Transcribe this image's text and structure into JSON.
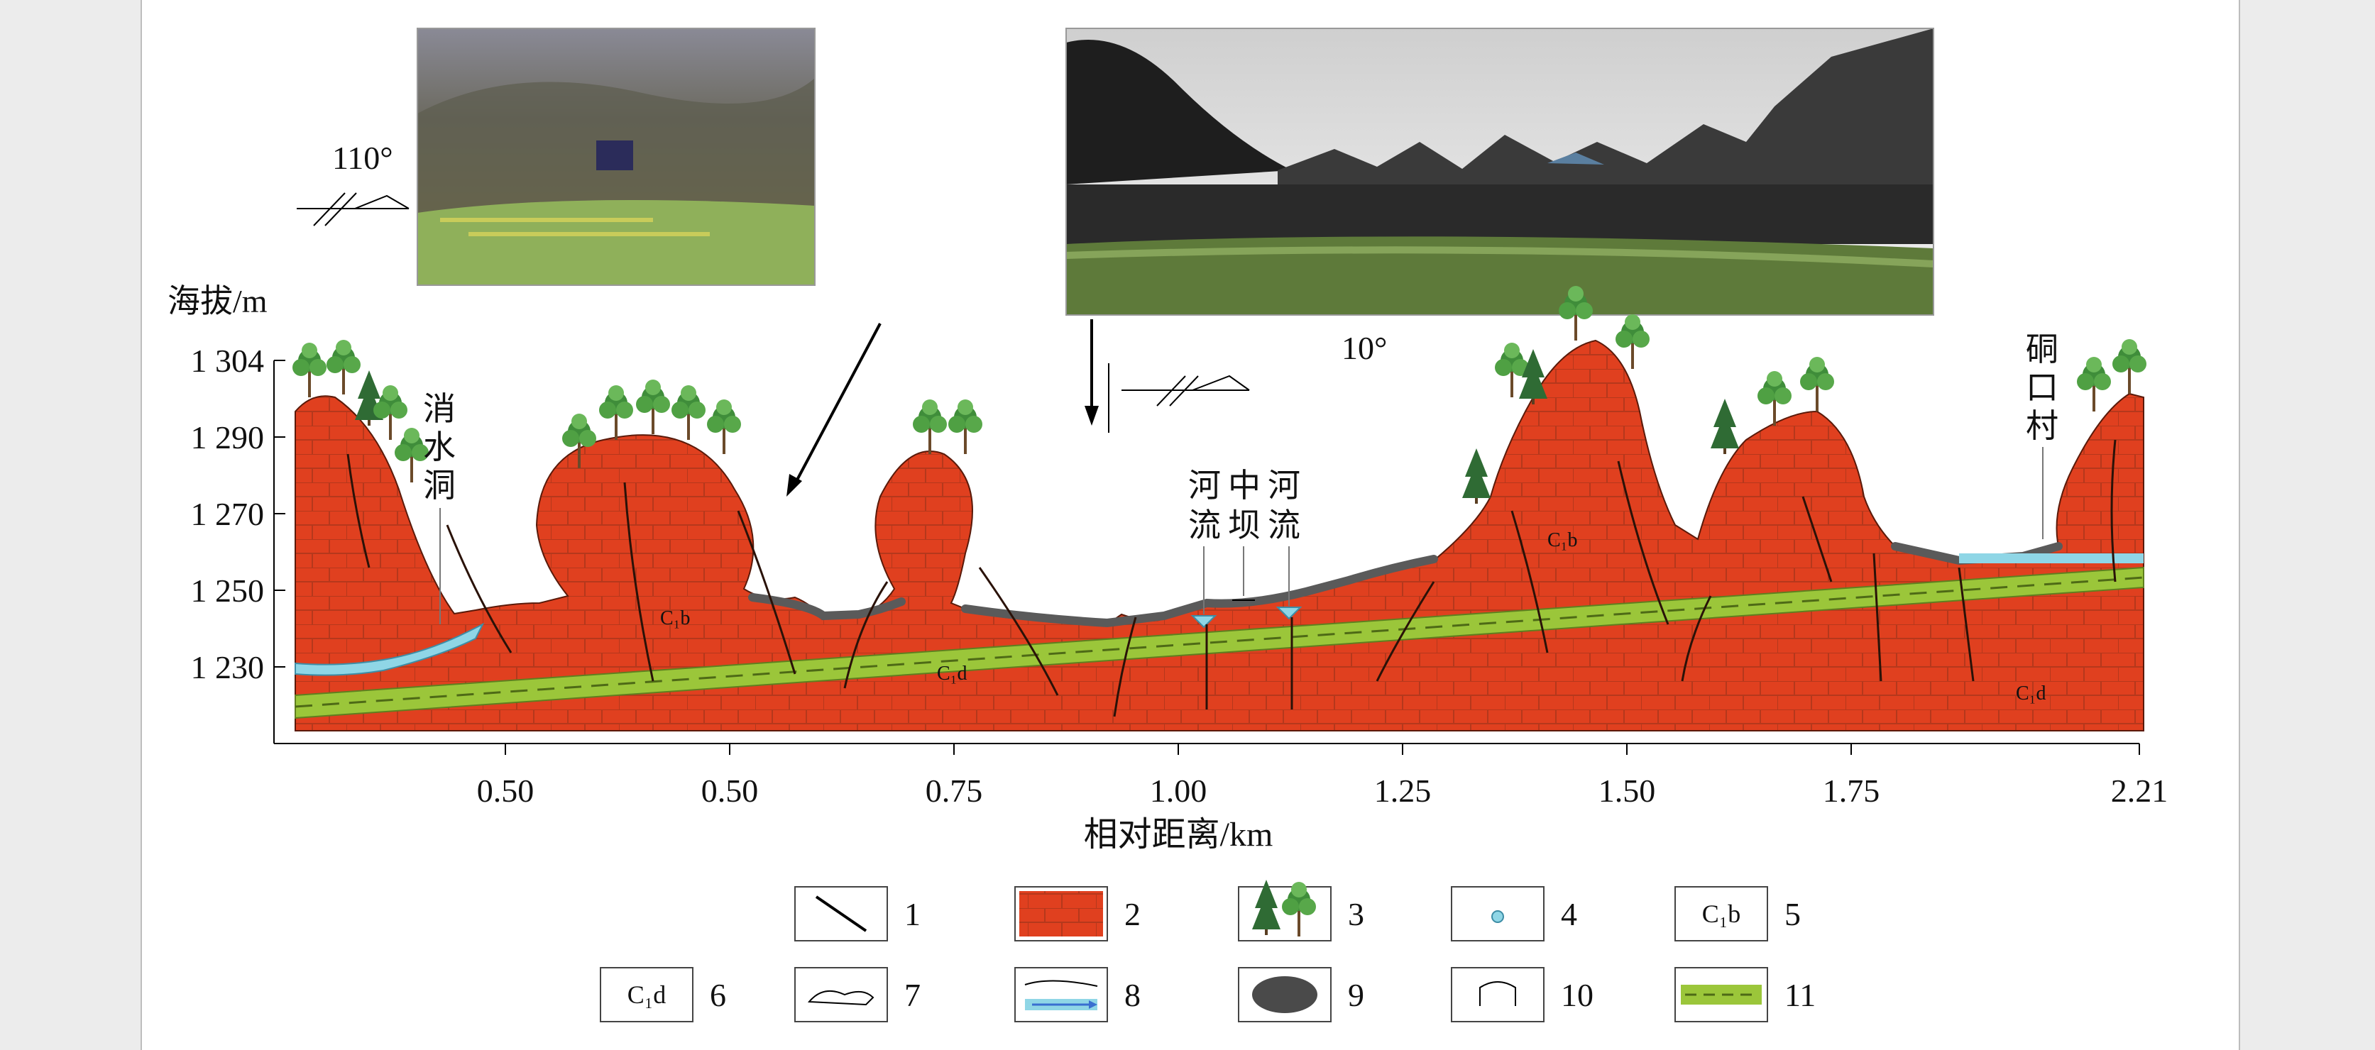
{
  "axis": {
    "y_label": "海拔/m",
    "x_label": "相对距离/km",
    "y_ticks": [
      "1 304",
      "1 290",
      "1 270",
      "1 250",
      "1 230"
    ],
    "x_ticks": [
      "0.50",
      "0.50",
      "0.75",
      "1.00",
      "1.25",
      "1.50",
      "1.75",
      "2.21"
    ]
  },
  "annotations": {
    "dip_left": "110°",
    "dip_right": "10°",
    "cave": "消水洞",
    "river_left": "河流",
    "zhongba": "中坝",
    "river_right": "河流",
    "village": "硐口村",
    "strata_c1b_1": "C₁b",
    "strata_c1d_1": "C₁d",
    "strata_c1b_2": "C₁b",
    "strata_c1d_2": "C₁d"
  },
  "legend": [
    {
      "num": "1",
      "symbol": "fault-line"
    },
    {
      "num": "2",
      "symbol": "limestone"
    },
    {
      "num": "3",
      "symbol": "vegetation"
    },
    {
      "num": "4",
      "symbol": "spring"
    },
    {
      "num": "5",
      "symbol": "C₁b"
    },
    {
      "num": "6",
      "symbol": "C₁d"
    },
    {
      "num": "7",
      "symbol": "boundary"
    },
    {
      "num": "8",
      "symbol": "river-flow"
    },
    {
      "num": "9",
      "symbol": "soil"
    },
    {
      "num": "10",
      "symbol": "cave"
    },
    {
      "num": "11",
      "symbol": "marker-bed"
    }
  ],
  "legend_text": {
    "c1b": "C₁b",
    "c1d": "C₁d"
  },
  "colors": {
    "limestone": "#e0401f",
    "brick_line": "#a8321a",
    "marker_bed": "#9bc63a",
    "soil": "#5a5a5a",
    "water": "#8fd6e6",
    "tree": "#3f8d3a"
  }
}
